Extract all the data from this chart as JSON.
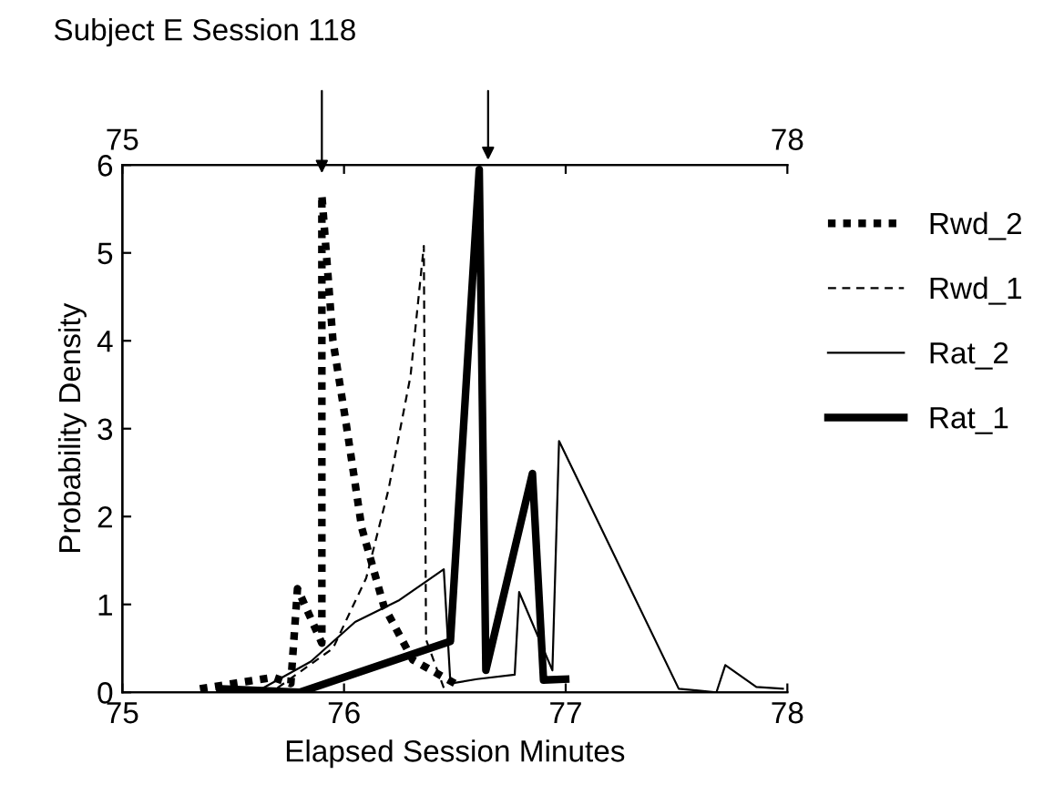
{
  "chart_data": {
    "type": "line",
    "title": "Subject E Session 118",
    "xlabel": "Elapsed Session Minutes",
    "ylabel": "Probability Density",
    "xlim": [
      75,
      78
    ],
    "xticks": [
      75,
      76,
      77,
      78
    ],
    "x2lim": [
      75,
      78
    ],
    "x2ticks": [
      75,
      {
        "value": 76,
        "label": null
      },
      {
        "value": 77,
        "label": null
      },
      78
    ],
    "ylim": [
      0,
      6
    ],
    "yticks": [
      0,
      1,
      2,
      3,
      4,
      5,
      6
    ],
    "grid": false,
    "legend": "right",
    "marker": "none",
    "series": [
      {
        "name": "Rwd_2",
        "color": "#000000",
        "line_style": "dotted",
        "x": [
          75.35,
          75.68,
          75.76,
          75.79,
          75.9,
          75.9,
          75.95,
          76.01,
          76.08,
          76.18,
          76.31,
          76.5
        ],
        "values": [
          0.04,
          0.17,
          0.1,
          1.18,
          0.56,
          5.66,
          4.0,
          3.05,
          1.87,
          0.98,
          0.37,
          0.1
        ]
      },
      {
        "name": "Rwd_1",
        "color": "#000000",
        "line_style": "dashed",
        "x": [
          75.7,
          75.95,
          76.1,
          76.2,
          76.3,
          76.36,
          76.37,
          76.45
        ],
        "values": [
          0.05,
          0.5,
          1.3,
          2.3,
          3.6,
          5.08,
          0.6,
          0.05
        ]
      },
      {
        "name": "Rat_2",
        "color": "#000000",
        "line_style": "solid",
        "x": [
          75.6,
          75.85,
          76.05,
          76.25,
          76.45,
          76.48,
          76.6,
          76.77,
          76.79,
          76.94,
          76.97,
          77.51,
          77.68,
          77.72,
          77.86,
          77.98
        ],
        "values": [
          0,
          0.35,
          0.8,
          1.05,
          1.4,
          0.1,
          0.15,
          0.2,
          1.14,
          0.25,
          2.86,
          0.04,
          0,
          0.31,
          0.06,
          0.04
        ]
      },
      {
        "name": "Rat_1",
        "color": "#000000",
        "line_style": "solid",
        "x": [
          75.44,
          75.8,
          76.48,
          76.61,
          76.64,
          76.85,
          76.9,
          77.0
        ],
        "values": [
          0.04,
          0,
          0.58,
          5.95,
          0.25,
          2.49,
          0.14,
          0.15
        ]
      }
    ]
  }
}
